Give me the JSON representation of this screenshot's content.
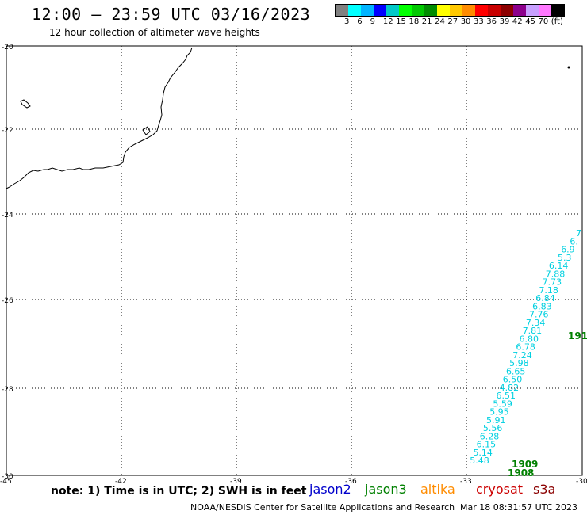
{
  "header": {
    "title": "12:00 – 23:59 UTC 03/16/2023",
    "subtitle": "12 hour collection of altimeter wave heights"
  },
  "color_scale": {
    "colors": [
      "#808080",
      "#00ffff",
      "#00b4ff",
      "#0000ff",
      "#00c8c8",
      "#00ff00",
      "#00c800",
      "#008c00",
      "#ffff00",
      "#ffc800",
      "#ff8c00",
      "#ff0000",
      "#c80000",
      "#8c0000",
      "#8c008c",
      "#c8a0ff",
      "#ff78ff",
      "#000000"
    ],
    "labels": [
      "3",
      "6",
      "9",
      "12",
      "15",
      "18",
      "21",
      "24",
      "27",
      "30",
      "33",
      "36",
      "39",
      "42",
      "45",
      "70",
      "(ft)"
    ]
  },
  "map": {
    "lat_labels": [
      "-20",
      "-22",
      "-24",
      "-26",
      "-28",
      "-30"
    ],
    "lon_labels": [
      "-45",
      "-42",
      "-39",
      "-36",
      "-33",
      "-30"
    ],
    "wave_heights": [
      "7",
      "6.",
      "6.9",
      "5.3",
      "6.14",
      "7.88",
      "7.73",
      "7.18",
      "6.84",
      "6.83",
      "7.76",
      "7.34",
      "7.81",
      "6.80",
      "6.78",
      "7.24",
      "5.98",
      "6.65",
      "6.50",
      "4.82",
      "6.51",
      "5.59",
      "5.95",
      "5.91",
      "5.56",
      "6.28",
      "6.15",
      "5.14",
      "5.48"
    ],
    "pass_times": [
      "191",
      "1909",
      "1908"
    ]
  },
  "footer": {
    "note": "note: 1) Time is in UTC; 2) SWH is in feet",
    "satellites": [
      {
        "name": "jason2",
        "color": "#0000cc"
      },
      {
        "name": "jason3",
        "color": "#008000"
      },
      {
        "name": "altika",
        "color": "#ff8c00"
      },
      {
        "name": "cryosat",
        "color": "#cc0000"
      },
      {
        "name": "s3a",
        "color": "#8b0000"
      }
    ],
    "credit": "NOAA/NESDIS Center for Satellite Applications and Research",
    "timestamp": "Mar 18 08:31:57 UTC 2023"
  }
}
